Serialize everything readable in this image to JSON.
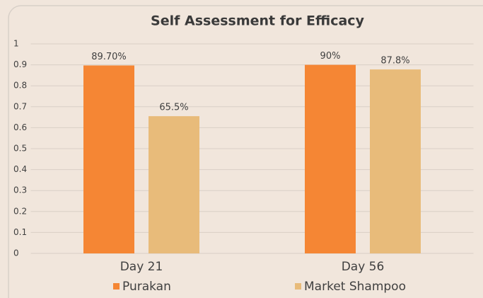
{
  "chart_data": {
    "type": "bar",
    "title": "Self Assessment for Efficacy",
    "categories": [
      "Day 21",
      "Day 56"
    ],
    "series": [
      {
        "name": "Purakan",
        "color": "#f58634",
        "values": [
          0.897,
          0.9
        ],
        "value_labels": [
          "89.70%",
          "90%"
        ]
      },
      {
        "name": "Market Shampoo",
        "color": "#e8bb7a",
        "values": [
          0.655,
          0.878
        ],
        "value_labels": [
          "65.5%",
          "87.8%"
        ]
      }
    ],
    "ylim": [
      0,
      1
    ],
    "yticks": [
      0,
      0.1,
      0.2,
      0.3,
      0.4,
      0.5,
      0.6,
      0.7,
      0.8,
      0.9,
      1
    ],
    "grid": true,
    "legend": "bottom"
  }
}
